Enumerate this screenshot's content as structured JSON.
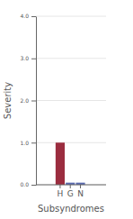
{
  "chart_data": {
    "type": "bar",
    "categories": [
      "H",
      "G",
      "N"
    ],
    "values": [
      1.0,
      0.05,
      0.05
    ],
    "colors": [
      "#9b2d3f",
      "#5b6bb0",
      "#5b6bb0"
    ],
    "x_label": "Subsyndromes",
    "y_label": "Severity",
    "ylim": [
      0,
      4
    ],
    "yticks": [
      {
        "value": 0,
        "label": "0.0"
      },
      {
        "value": 1,
        "label": "1.0"
      },
      {
        "value": 2,
        "label": "2.0"
      },
      {
        "value": 3,
        "label": "3.0"
      },
      {
        "value": 4,
        "label": "4.0"
      }
    ],
    "grid": true
  }
}
